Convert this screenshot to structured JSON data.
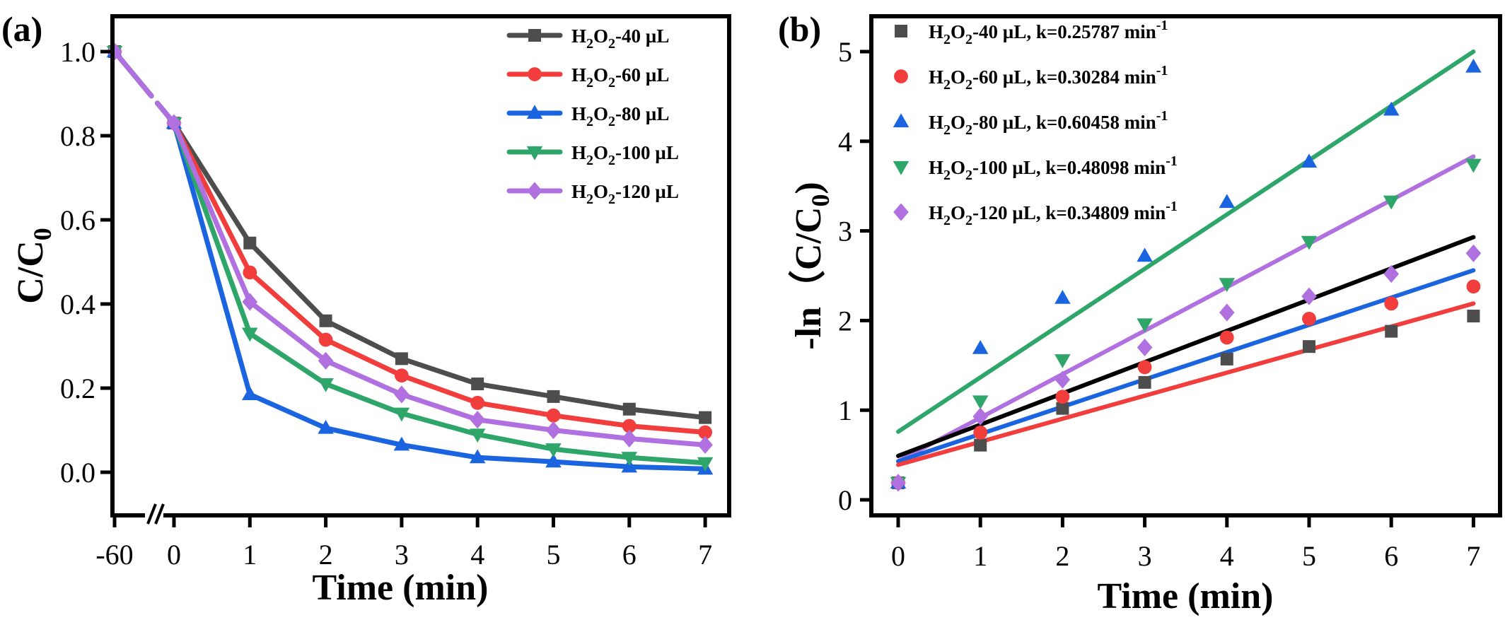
{
  "chart_data": [
    {
      "panel": "(a)",
      "type": "line",
      "title": "",
      "xlabel": "Time (min)",
      "ylabel_main": "C/C",
      "ylabel_sub": "0",
      "x": [
        -60,
        0,
        1,
        2,
        3,
        4,
        5,
        6,
        7
      ],
      "x_tick_labels": [
        "-60",
        "0",
        "1",
        "2",
        "3",
        "4",
        "5",
        "6",
        "7"
      ],
      "x_axis_break": "between -60 and 0",
      "y_ticks": [
        0.0,
        0.2,
        0.4,
        0.6,
        0.8,
        1.0
      ],
      "y_tick_labels": [
        "0.0",
        "0.2",
        "0.4",
        "0.6",
        "0.8",
        "1.0"
      ],
      "ylim": [
        -0.11,
        1.1
      ],
      "grid": false,
      "legend_position": "top-right",
      "series": [
        {
          "name_main": "H",
          "name_sub1": "2",
          "name_mid": "O",
          "name_sub2": "2",
          "name_tail": "-40 µL",
          "color": "#4d4d4d",
          "marker": "square",
          "values": [
            1.0,
            0.83,
            0.545,
            0.36,
            0.27,
            0.21,
            0.18,
            0.15,
            0.13
          ]
        },
        {
          "name_main": "H",
          "name_sub1": "2",
          "name_mid": "O",
          "name_sub2": "2",
          "name_tail": "-60 µL",
          "color": "#f23d3d",
          "marker": "circle",
          "values": [
            1.0,
            0.83,
            0.475,
            0.315,
            0.23,
            0.165,
            0.135,
            0.11,
            0.095
          ]
        },
        {
          "name_main": "H",
          "name_sub1": "2",
          "name_mid": "O",
          "name_sub2": "2",
          "name_tail": "-80 µL",
          "color": "#1b64e0",
          "marker": "triangle-up",
          "values": [
            1.0,
            0.83,
            0.185,
            0.105,
            0.065,
            0.035,
            0.025,
            0.013,
            0.008
          ]
        },
        {
          "name_main": "H",
          "name_sub1": "2",
          "name_mid": "O",
          "name_sub2": "2",
          "name_tail": "-100 µL",
          "color": "#2ea66a",
          "marker": "triangle-down",
          "values": [
            1.0,
            0.83,
            0.33,
            0.21,
            0.14,
            0.09,
            0.055,
            0.035,
            0.022
          ]
        },
        {
          "name_main": "H",
          "name_sub1": "2",
          "name_mid": "O",
          "name_sub2": "2",
          "name_tail": "-120 µL",
          "color": "#b070e0",
          "marker": "diamond",
          "values": [
            1.0,
            0.83,
            0.405,
            0.265,
            0.185,
            0.125,
            0.1,
            0.08,
            0.065
          ]
        }
      ]
    },
    {
      "panel": "(b)",
      "type": "scatter",
      "title": "",
      "xlabel": "Time (min)",
      "ylabel_main": "-ln（C/C",
      "ylabel_sub": "0",
      "ylabel_end": ")",
      "x": [
        0,
        1,
        2,
        3,
        4,
        5,
        6,
        7
      ],
      "x_tick_labels": [
        "0",
        "1",
        "2",
        "3",
        "4",
        "5",
        "6",
        "7"
      ],
      "xlim": [
        -0.3,
        7.15
      ],
      "y_ticks": [
        0,
        1,
        2,
        3,
        4,
        5
      ],
      "y_tick_labels": [
        "0",
        "1",
        "2",
        "3",
        "4",
        "5"
      ],
      "ylim": [
        -0.17,
        5.39
      ],
      "grid": false,
      "legend_position": "top-left",
      "series": [
        {
          "name_main": "H",
          "name_sub1": "2",
          "name_mid": "O",
          "name_sub2": "2",
          "name_tail": "-40 µL, k=0.25787 min",
          "name_sup": "-1",
          "color": "#4d4d4d",
          "marker": "square",
          "values": [
            0.19,
            0.61,
            1.02,
            1.31,
            1.57,
            1.71,
            1.88,
            2.05
          ]
        },
        {
          "name_main": "H",
          "name_sub1": "2",
          "name_mid": "O",
          "name_sub2": "2",
          "name_tail": "-60 µL, k=0.30284 min",
          "name_sup": "-1",
          "color": "#f23d3d",
          "marker": "circle",
          "values": [
            0.19,
            0.75,
            1.15,
            1.48,
            1.81,
            2.02,
            2.19,
            2.38
          ]
        },
        {
          "name_main": "H",
          "name_sub1": "2",
          "name_mid": "O",
          "name_sub2": "2",
          "name_tail": "-80 µL, k=0.60458 min",
          "name_sup": "-1",
          "color": "#1b64e0",
          "marker": "triangle-up",
          "values": [
            0.19,
            1.69,
            2.25,
            2.72,
            3.32,
            3.77,
            4.35,
            4.83
          ]
        },
        {
          "name_main": "H",
          "name_sub1": "2",
          "name_mid": "O",
          "name_sub2": "2",
          "name_tail": "-100 µL, k=0.48098 min",
          "name_sup": "-1",
          "color": "#2ea66a",
          "marker": "triangle-down",
          "values": [
            0.19,
            1.1,
            1.56,
            1.96,
            2.41,
            2.88,
            3.33,
            3.74
          ]
        },
        {
          "name_main": "H",
          "name_sub1": "2",
          "name_mid": "O",
          "name_sub2": "2",
          "name_tail": "-120 µL, k=0.34809 min",
          "name_sup": "-1",
          "color": "#b070e0",
          "marker": "diamond",
          "values": [
            0.19,
            0.93,
            1.34,
            1.7,
            2.09,
            2.27,
            2.52,
            2.75
          ]
        }
      ],
      "fit_lines": [
        {
          "color": "#2ea66a",
          "x": [
            0,
            7
          ],
          "y": [
            0.76,
            5.0
          ]
        },
        {
          "color": "#b070e0",
          "x": [
            0,
            7
          ],
          "y": [
            0.43,
            3.83
          ]
        },
        {
          "color": "#000000",
          "x": [
            0,
            7
          ],
          "y": [
            0.49,
            2.93
          ]
        },
        {
          "color": "#1b64e0",
          "x": [
            0,
            7
          ],
          "y": [
            0.43,
            2.56
          ]
        },
        {
          "color": "#f23d3d",
          "x": [
            0,
            7
          ],
          "y": [
            0.39,
            2.19
          ]
        }
      ]
    }
  ]
}
